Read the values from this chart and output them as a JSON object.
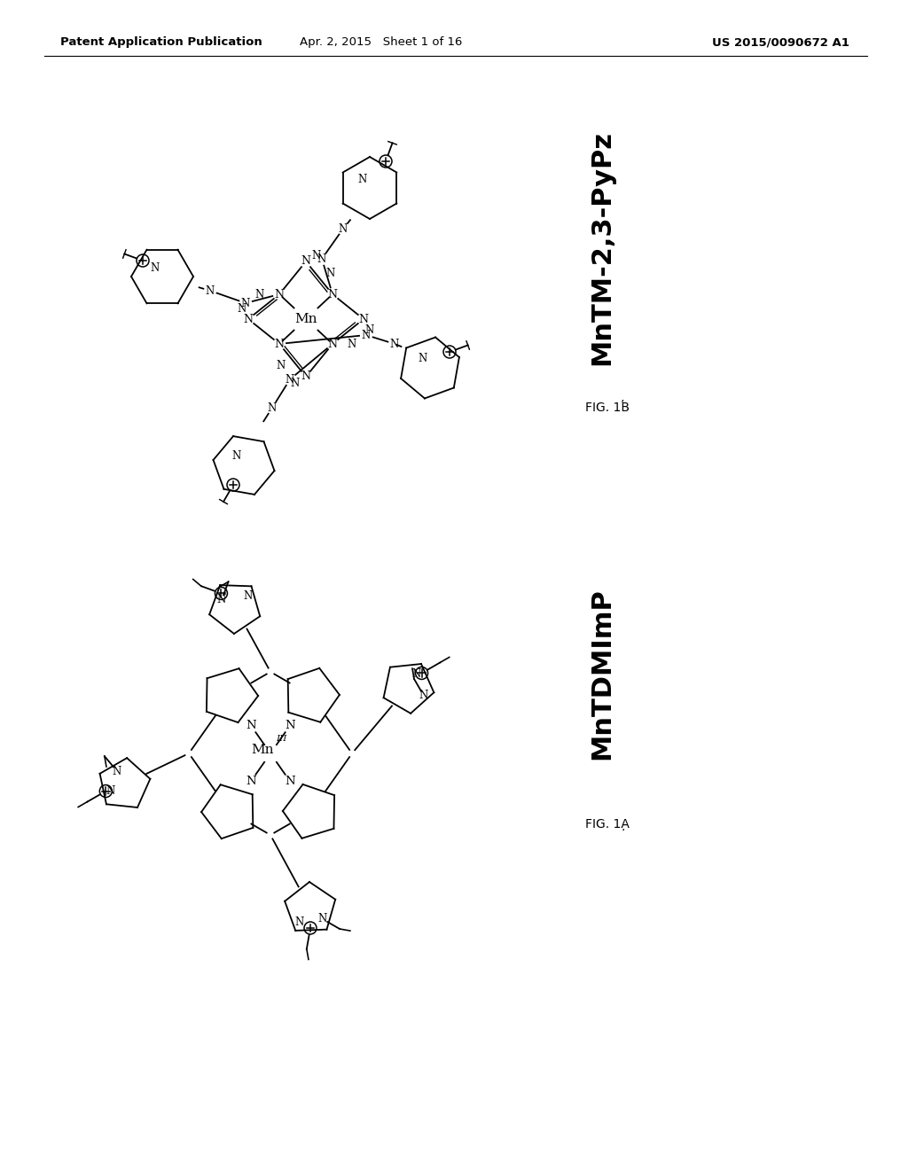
{
  "background_color": "#ffffff",
  "header_left": "Patent Application Publication",
  "header_center": "Apr. 2, 2015   Sheet 1 of 16",
  "header_right": "US 2015/0090672 A1",
  "fig1b_name": "MnTM-2,3-PyPz",
  "fig1b_label": "FIG. 1B",
  "fig1a_name": "MnTDMImP",
  "fig1a_label": "FIG. 1A"
}
